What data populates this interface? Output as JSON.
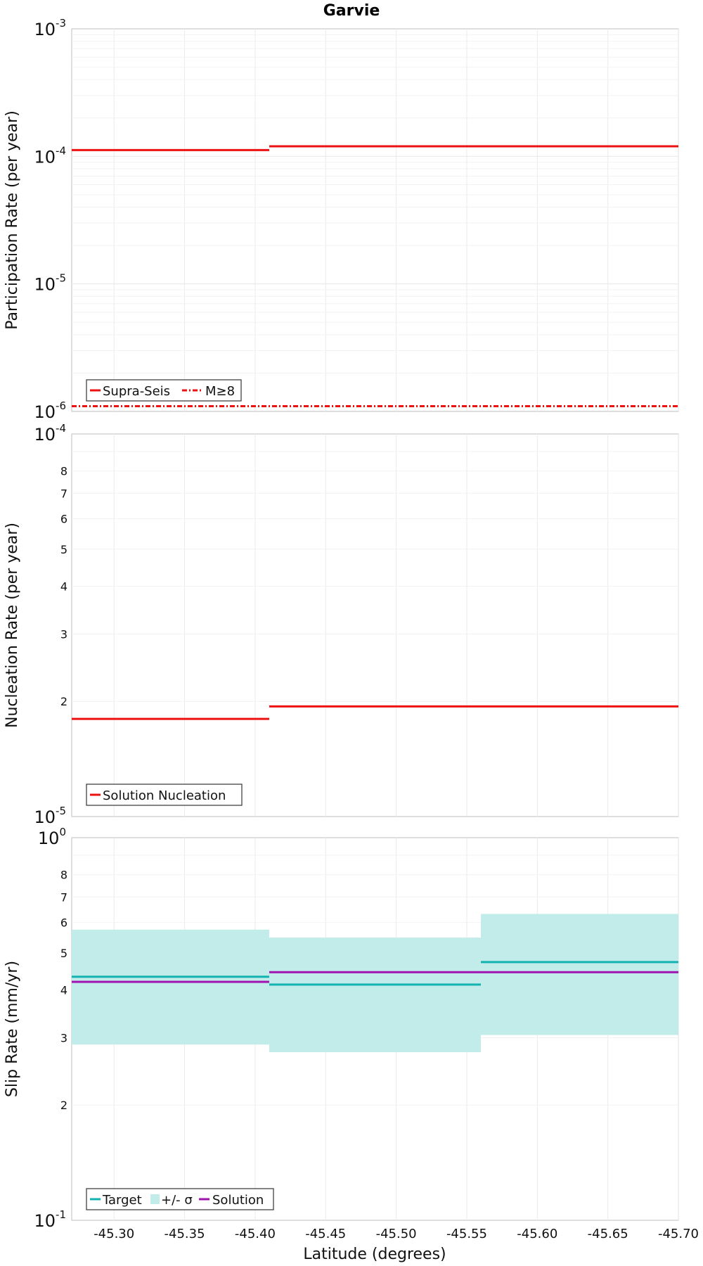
{
  "title": "Garvie",
  "xlabel": "Latitude (degrees)",
  "colors": {
    "red": "#ee1111",
    "teal": "#12b3b0",
    "band": "#c2ecea",
    "purple": "#a012b0"
  },
  "chart_data": [
    {
      "type": "line",
      "ylabel": "Participation Rate (per year)",
      "yscale": "log",
      "ylim": [
        1e-06,
        0.001
      ],
      "xlim": [
        -45.27,
        -45.7
      ],
      "x_ticks": [
        "-45.30",
        "-45.35",
        "-45.40",
        "-45.45",
        "-45.50",
        "-45.55",
        "-45.60",
        "-45.65",
        "-45.70"
      ],
      "y_major_ticks": [
        "10^-6",
        "10^-5",
        "10^-4",
        "10^-3"
      ],
      "legend": [
        "Supra-Seis",
        "M≥8"
      ],
      "legend_position": "bottom-left",
      "series": [
        {
          "name": "Supra-Seis",
          "style": "solid",
          "segments": [
            {
              "x": [
                -45.27,
                -45.41
              ],
              "y": 0.000112
            },
            {
              "x": [
                -45.41,
                -45.7
              ],
              "y": 0.00012
            }
          ]
        },
        {
          "name": "M≥8",
          "style": "dashdot",
          "segments": [
            {
              "x": [
                -45.27,
                -45.7
              ],
              "y": 1.1e-06
            }
          ]
        }
      ]
    },
    {
      "type": "line",
      "ylabel": "Nucleation Rate (per year)",
      "yscale": "log",
      "ylim": [
        1e-05,
        0.0001
      ],
      "xlim": [
        -45.27,
        -45.7
      ],
      "y_major_ticks": [
        "10^-5",
        "10^-4"
      ],
      "y_minor_ticks": [
        "2",
        "3",
        "4",
        "5",
        "6",
        "7",
        "8"
      ],
      "legend": [
        "Solution Nucleation"
      ],
      "legend_position": "bottom-left",
      "series": [
        {
          "name": "Solution Nucleation",
          "style": "solid",
          "segments": [
            {
              "x": [
                -45.27,
                -45.41
              ],
              "y": 1.8e-05
            },
            {
              "x": [
                -45.41,
                -45.7
              ],
              "y": 1.94e-05
            }
          ]
        }
      ]
    },
    {
      "type": "line",
      "ylabel": "Slip Rate (mm/yr)",
      "yscale": "log",
      "ylim": [
        0.1,
        1.0
      ],
      "xlim": [
        -45.27,
        -45.7
      ],
      "x_ticks": [
        "-45.30",
        "-45.35",
        "-45.40",
        "-45.45",
        "-45.50",
        "-45.55",
        "-45.60",
        "-45.65",
        "-45.70"
      ],
      "y_major_ticks": [
        "10^-1",
        "10^0"
      ],
      "y_minor_ticks": [
        "2",
        "3",
        "4",
        "5",
        "6",
        "7",
        "8"
      ],
      "legend": [
        "Target",
        "+/- σ",
        "Solution"
      ],
      "legend_position": "bottom-left",
      "band": [
        {
          "x": [
            -45.27,
            -45.41
          ],
          "low": 0.288,
          "high": 0.575
        },
        {
          "x": [
            -45.41,
            -45.56
          ],
          "low": 0.275,
          "high": 0.548
        },
        {
          "x": [
            -45.56,
            -45.7
          ],
          "low": 0.305,
          "high": 0.632
        }
      ],
      "series": [
        {
          "name": "Target",
          "style": "solid",
          "segments": [
            {
              "x": [
                -45.27,
                -45.41
              ],
              "y": 0.433
            },
            {
              "x": [
                -45.41,
                -45.56
              ],
              "y": 0.413
            },
            {
              "x": [
                -45.56,
                -45.7
              ],
              "y": 0.473
            }
          ]
        },
        {
          "name": "Solution",
          "style": "solid",
          "segments": [
            {
              "x": [
                -45.27,
                -45.41
              ],
              "y": 0.42
            },
            {
              "x": [
                -45.41,
                -45.7
              ],
              "y": 0.445
            }
          ]
        }
      ]
    }
  ]
}
